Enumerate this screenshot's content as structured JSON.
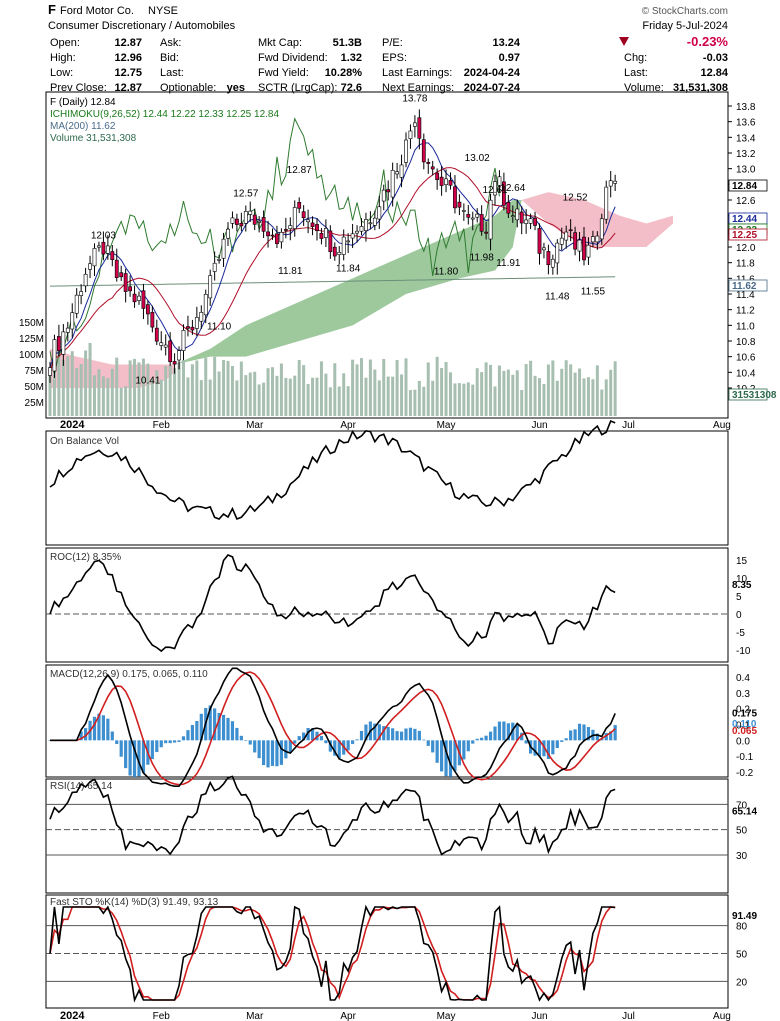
{
  "header": {
    "symbol": "F",
    "company": "Ford Motor Co.",
    "exchange": "NYSE",
    "sector": "Consumer Discretionary / Automobiles",
    "date": "Friday  5-Jul-2024",
    "change_pct": "-0.23%",
    "brand": "© StockCharts.com",
    "col1": [
      [
        "Open:",
        "12.87"
      ],
      [
        "High:",
        "12.96"
      ],
      [
        "Low:",
        "12.75"
      ],
      [
        "Prev Close:",
        "12.87"
      ]
    ],
    "col2": [
      [
        "Ask:",
        ""
      ],
      [
        "Bid:",
        ""
      ],
      [
        "Last:",
        ""
      ],
      [
        "Optionable:",
        "yes"
      ]
    ],
    "col3": [
      [
        "Mkt Cap:",
        "51.3B"
      ],
      [
        "Fwd Dividend:",
        "1.32"
      ],
      [
        "Fwd Yield:",
        "10.28%"
      ],
      [
        "SCTR (LrgCap):",
        "72.6"
      ]
    ],
    "col4": [
      [
        "P/E:",
        "13.24"
      ],
      [
        "EPS:",
        "0.97"
      ],
      [
        "Last Earnings:",
        "2024-04-24"
      ],
      [
        "Next Earnings:",
        "2024-07-24"
      ]
    ],
    "col5": [
      [
        "Chg:",
        "-0.03"
      ],
      [
        "Last:",
        "12.84"
      ],
      [
        "Volume:",
        "31,531,308"
      ]
    ]
  },
  "price_panel": {
    "legend": [
      "F (Daily) 12.84",
      "ICHIMOKU(9,26,52) 12.44 12.22 12.33 12.25 12.84",
      "MA(200) 11.62",
      "Volume 31,531,308"
    ],
    "y_ticks": [
      "13.8",
      "13.6",
      "13.4",
      "13.2",
      "13.0",
      "12.8",
      "12.6",
      "12.4",
      "12.2",
      "12.0",
      "11.8",
      "11.6",
      "11.4",
      "11.2",
      "11.0",
      "10.8",
      "10.6",
      "10.4",
      "10.2"
    ],
    "vol_ticks": [
      "150M",
      "125M",
      "100M",
      "75M",
      "50M",
      "25M"
    ],
    "right_labels": [
      "12.84",
      "12.44",
      "12.33",
      "12.25",
      "11.62",
      "31531308"
    ],
    "annotations": [
      "13.78",
      "13.02",
      "12.87",
      "12.57",
      "12.03",
      "12.61",
      "12.64",
      "12.52",
      "11.81",
      "11.84",
      "11.80",
      "11.98",
      "11.91",
      "11.48",
      "11.55",
      "11.10",
      "10.41"
    ]
  },
  "x_labels": [
    "2024",
    "Feb",
    "Mar",
    "Apr",
    "May",
    "Jun",
    "Jul",
    "Aug"
  ],
  "obv": {
    "label": "On Balance Vol"
  },
  "roc": {
    "label": "ROC(12) 8.35%",
    "ticks": [
      "15",
      "10",
      "5",
      "0",
      "-5",
      "-10"
    ],
    "last": "8.35"
  },
  "macd": {
    "label": "MACD(12,26,9) 0.175, 0.065, 0.110",
    "ticks": [
      "0.4",
      "0.3",
      "0.2",
      "0.1",
      "0.0",
      "-0.1",
      "-0.2"
    ],
    "last": [
      "0.175",
      "0.110",
      "0.065"
    ]
  },
  "rsi": {
    "label": "RSI(14) 65.14",
    "ticks": [
      "70",
      "50",
      "30"
    ],
    "last": "65.14"
  },
  "sto": {
    "label": "Fast STO %K(14) %D(3) 91.49, 93.13",
    "ticks": [
      "80",
      "50",
      "20"
    ],
    "last": "91.49"
  },
  "colors": {
    "up": "#ffffff",
    "down": "#d0004a",
    "cloud_up": "#8cc08c",
    "cloud_down": "#f2b3bf",
    "volume": "#a7bfb0",
    "macd_hist": "#3d8fcf",
    "signal": "#d11f1f"
  },
  "chart_data": {
    "type": "line",
    "title": "Ford Motor Co. NYSE",
    "x": [
      "2024-01",
      "2024-01",
      "2024-01",
      "2024-02",
      "2024-02",
      "2024-02",
      "2024-03",
      "2024-03",
      "2024-03",
      "2024-04",
      "2024-04",
      "2024-04",
      "2024-05",
      "2024-05",
      "2024-05",
      "2024-06",
      "2024-06",
      "2024-06",
      "2024-07"
    ],
    "series": [
      {
        "name": "F (Daily)",
        "values": [
          10.6,
          11.9,
          11.5,
          11.2,
          12.4,
          12.3,
          12.5,
          12.2,
          12.6,
          13.5,
          12.9,
          12.1,
          12.2,
          12.3,
          12.1,
          11.9,
          11.7,
          12.1,
          12.84
        ]
      },
      {
        "name": "MA(200)",
        "values": [
          11.6,
          11.6,
          11.6,
          11.6,
          11.6,
          11.6,
          11.6,
          11.6,
          11.6,
          11.6,
          11.6,
          11.6,
          11.6,
          11.6,
          11.6,
          11.6,
          11.6,
          11.6,
          11.62
        ]
      }
    ],
    "ylim": [
      10.2,
      13.9
    ],
    "annotations": [
      13.78,
      13.02,
      12.87,
      12.57,
      12.03,
      12.61,
      12.64,
      12.52,
      11.81,
      11.84,
      11.8,
      11.98,
      11.91,
      11.48,
      11.55,
      11.1,
      10.41
    ]
  }
}
